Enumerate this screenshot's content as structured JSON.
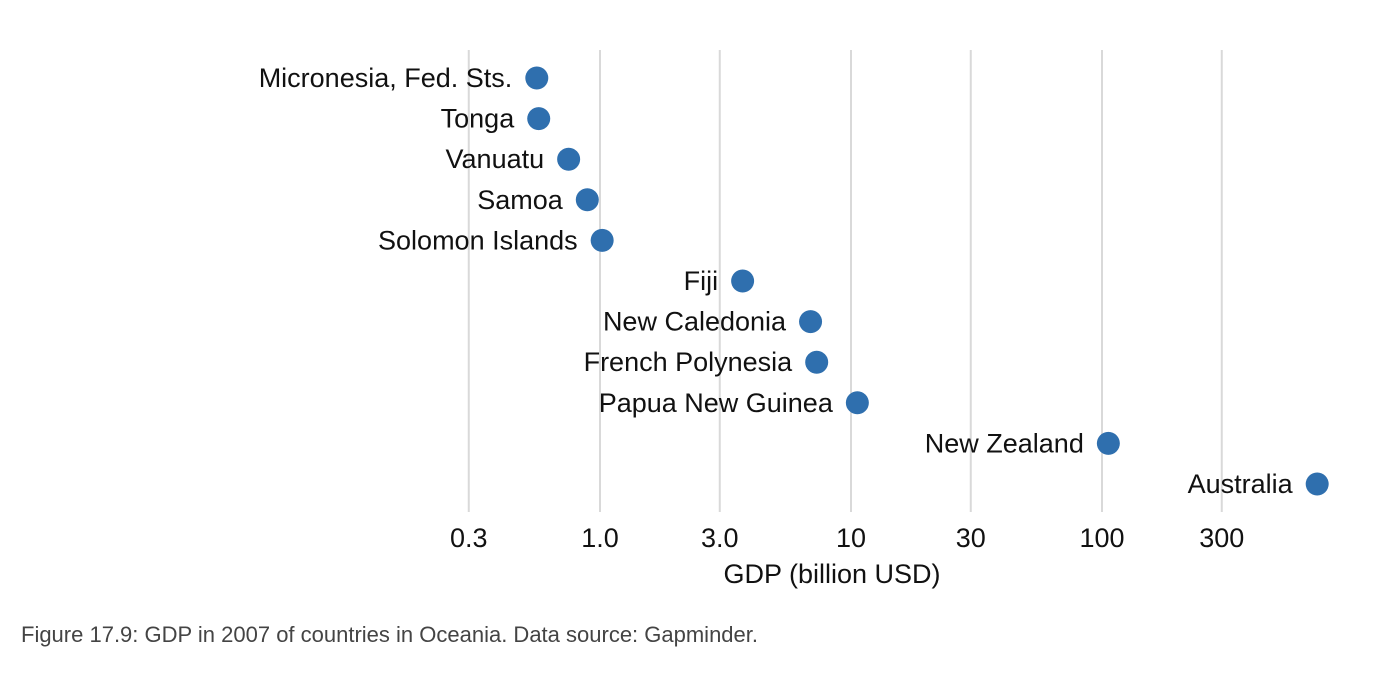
{
  "chart_data": {
    "type": "scatter",
    "orientation": "horizontal-dot",
    "xlabel": "GDP (billion USD)",
    "x_scale": "log10",
    "xlim": [
      0.2,
      700
    ],
    "x_ticks": [
      0.3,
      1.0,
      3.0,
      10,
      30,
      100,
      300
    ],
    "x_tick_labels": [
      "0.3",
      "1.0",
      "3.0",
      "10",
      "30",
      "100",
      "300"
    ],
    "grid": true,
    "point_color": "#2f6fae",
    "series": [
      {
        "categories": [
          "Micronesia, Fed. Sts.",
          "Tonga",
          "Vanuatu",
          "Samoa",
          "Solomon Islands",
          "Fiji",
          "New Caledonia",
          "French Polynesia",
          "Papua New Guinea",
          "New Zealand",
          "Australia"
        ],
        "values": [
          0.56,
          0.57,
          0.75,
          0.89,
          1.02,
          3.7,
          6.9,
          7.3,
          10.6,
          106,
          720
        ]
      }
    ]
  },
  "caption": "Figure 17.9: GDP in 2007 of countries in Oceania. Data source: Gapminder."
}
